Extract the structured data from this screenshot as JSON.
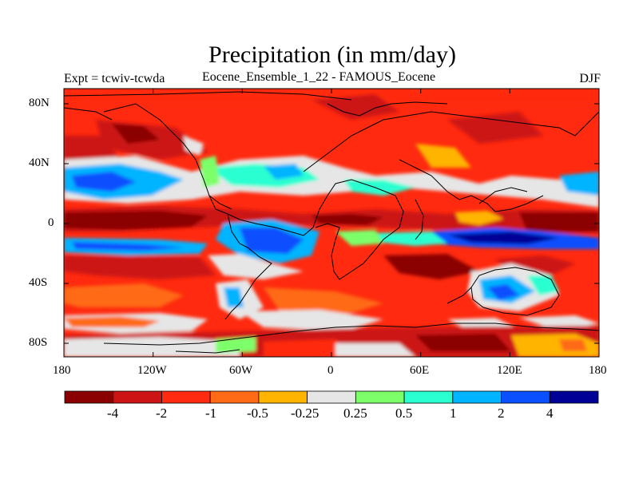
{
  "map": {
    "title": "Precipitation (in mm/day)",
    "expt_label": "Expt = tcwiv-tcwda",
    "model_label": "Eocene_Ensemble_1_22 - FAMOUS_Eocene",
    "season": "DJF",
    "lat_labels": [
      "80N",
      "40N",
      "0",
      "40S",
      "80S"
    ],
    "lon_labels": [
      "180",
      "120W",
      "60W",
      "0",
      "60E",
      "120E",
      "180"
    ],
    "colorbar": {
      "colors": [
        "#8b0000",
        "#cc1414",
        "#ff2a0f",
        "#ff6a14",
        "#ffb400",
        "#e6e6e6",
        "#7dff6a",
        "#2affd2",
        "#00b4ff",
        "#0a50ff",
        "#000096"
      ],
      "labels": [
        "-4",
        "-2",
        "-1",
        "-0.5",
        "-0.25",
        "0.25",
        "0.5",
        "1",
        "2",
        "4"
      ]
    }
  }
}
